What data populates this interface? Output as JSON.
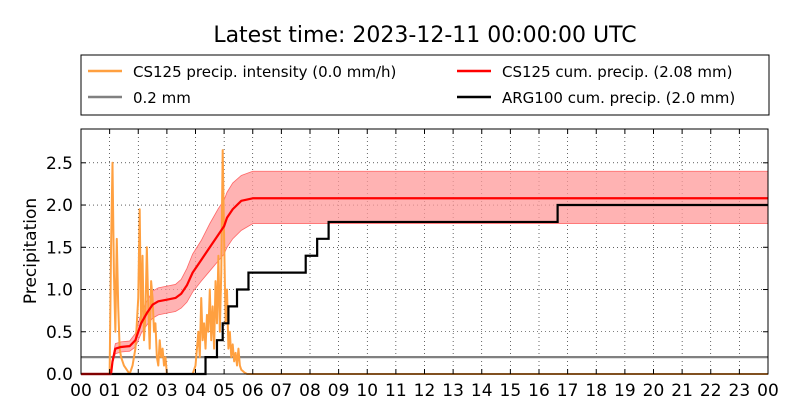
{
  "chart_data": {
    "type": "line",
    "title": "Latest time: 2023-12-11 00:00:00 UTC",
    "xlabel": "",
    "ylabel": "Precipitation",
    "xlim": [
      0,
      24
    ],
    "ylim": [
      0,
      2.9
    ],
    "grid": true,
    "legend_position": "top",
    "x_tick_labels": [
      "00",
      "01",
      "02",
      "03",
      "04",
      "05",
      "06",
      "07",
      "08",
      "09",
      "10",
      "11",
      "12",
      "13",
      "14",
      "15",
      "16",
      "17",
      "18",
      "19",
      "20",
      "21",
      "22",
      "23",
      "00"
    ],
    "y_ticks": [
      0.0,
      0.5,
      1.0,
      1.5,
      2.0,
      2.5
    ],
    "y_tick_labels": [
      "0.0",
      "0.5",
      "1.0",
      "1.5",
      "2.0",
      "2.5"
    ],
    "colors": {
      "intensity": "#ffa040",
      "threshold": "#808080",
      "cs125_cum": "#ff0000",
      "cs125_band": "#ff9999",
      "arg100_cum": "#000000"
    },
    "series": [
      {
        "name": "CS125 precip. intensity (0.0 mm/h)",
        "key": "intensity",
        "x": [
          0,
          1.0,
          1.05,
          1.1,
          1.15,
          1.2,
          1.25,
          1.3,
          1.35,
          1.4,
          1.5,
          1.6,
          1.7,
          1.8,
          1.9,
          2.0,
          2.05,
          2.1,
          2.15,
          2.2,
          2.25,
          2.3,
          2.35,
          2.4,
          2.45,
          2.5,
          2.55,
          2.6,
          2.65,
          2.7,
          2.75,
          2.8,
          2.85,
          2.9,
          2.95,
          3.0,
          3.1,
          3.3,
          3.5,
          3.7,
          3.8,
          3.9,
          4.0,
          4.05,
          4.1,
          4.15,
          4.2,
          4.25,
          4.3,
          4.35,
          4.4,
          4.45,
          4.5,
          4.55,
          4.6,
          4.65,
          4.7,
          4.75,
          4.8,
          4.85,
          4.9,
          4.95,
          5.0,
          5.05,
          5.1,
          5.15,
          5.2,
          5.25,
          5.3,
          5.35,
          5.4,
          5.45,
          5.5,
          5.55,
          5.6,
          5.7,
          5.8,
          5.9,
          6.0,
          6.2,
          24
        ],
        "values": [
          0,
          0,
          1.5,
          2.5,
          1.2,
          0.5,
          1.6,
          0.8,
          0.3,
          0.2,
          0.1,
          0.05,
          0,
          0.1,
          0.3,
          0.9,
          1.95,
          0.6,
          1.4,
          0.4,
          0.7,
          1.5,
          0.8,
          0.3,
          1.1,
          0.9,
          0.5,
          0.6,
          0.2,
          0.1,
          0.4,
          0.2,
          0.3,
          0.1,
          0.2,
          0,
          0,
          0,
          0,
          0,
          0,
          0,
          0.1,
          0.3,
          0.5,
          0.2,
          0.9,
          0.4,
          0.6,
          0.3,
          0.7,
          0.5,
          1.0,
          0.4,
          0.8,
          0.3,
          1.1,
          0.6,
          1.4,
          0.5,
          1.2,
          2.65,
          1.6,
          0.6,
          1.0,
          0.3,
          0.5,
          0.2,
          0.35,
          0.15,
          0.25,
          0.1,
          0.3,
          0.1,
          0.05,
          0.02,
          0,
          0,
          0,
          0,
          0
        ]
      },
      {
        "name": "0.2 mm",
        "key": "threshold",
        "x": [
          0,
          24
        ],
        "values": [
          0.2,
          0.2
        ]
      },
      {
        "name": "CS125 cum. precip. (2.08 mm)",
        "key": "cs125_cum",
        "x": [
          0,
          1.05,
          1.1,
          1.2,
          1.4,
          1.7,
          1.9,
          2.1,
          2.3,
          2.5,
          2.7,
          3.0,
          3.3,
          3.5,
          3.7,
          3.9,
          4.2,
          4.5,
          4.8,
          5.0,
          5.1,
          5.3,
          5.6,
          6.0,
          24
        ],
        "values": [
          0,
          0,
          0.15,
          0.3,
          0.32,
          0.33,
          0.4,
          0.6,
          0.72,
          0.82,
          0.86,
          0.88,
          0.9,
          0.95,
          1.05,
          1.2,
          1.35,
          1.5,
          1.65,
          1.75,
          1.85,
          1.95,
          2.05,
          2.08,
          2.08
        ],
        "band_lower": [
          0,
          0,
          0.12,
          0.24,
          0.26,
          0.27,
          0.32,
          0.48,
          0.58,
          0.66,
          0.7,
          0.72,
          0.74,
          0.78,
          0.85,
          0.97,
          1.1,
          1.22,
          1.34,
          1.42,
          1.5,
          1.6,
          1.7,
          1.78,
          1.78
        ],
        "band_upper": [
          0,
          0,
          0.18,
          0.36,
          0.38,
          0.39,
          0.48,
          0.72,
          0.86,
          0.98,
          1.02,
          1.04,
          1.06,
          1.12,
          1.25,
          1.42,
          1.58,
          1.78,
          1.96,
          2.06,
          2.15,
          2.26,
          2.35,
          2.4,
          2.4
        ]
      },
      {
        "name": "ARG100 cum. precip. (2.0 mm)",
        "key": "arg100_cum",
        "x": [
          0,
          4.35,
          4.35,
          4.75,
          4.75,
          4.95,
          4.95,
          5.15,
          5.15,
          5.45,
          5.45,
          5.85,
          5.85,
          6.25,
          6.25,
          7.85,
          7.85,
          8.25,
          8.25,
          8.45,
          8.45,
          8.65,
          8.65,
          16.65,
          16.65,
          24
        ],
        "values": [
          0,
          0,
          0.2,
          0.2,
          0.4,
          0.4,
          0.6,
          0.6,
          0.8,
          0.8,
          1.0,
          1.0,
          1.2,
          1.2,
          1.2,
          1.2,
          1.4,
          1.4,
          1.6,
          1.6,
          1.6,
          1.6,
          1.8,
          1.8,
          2.0,
          2.0
        ]
      }
    ]
  }
}
